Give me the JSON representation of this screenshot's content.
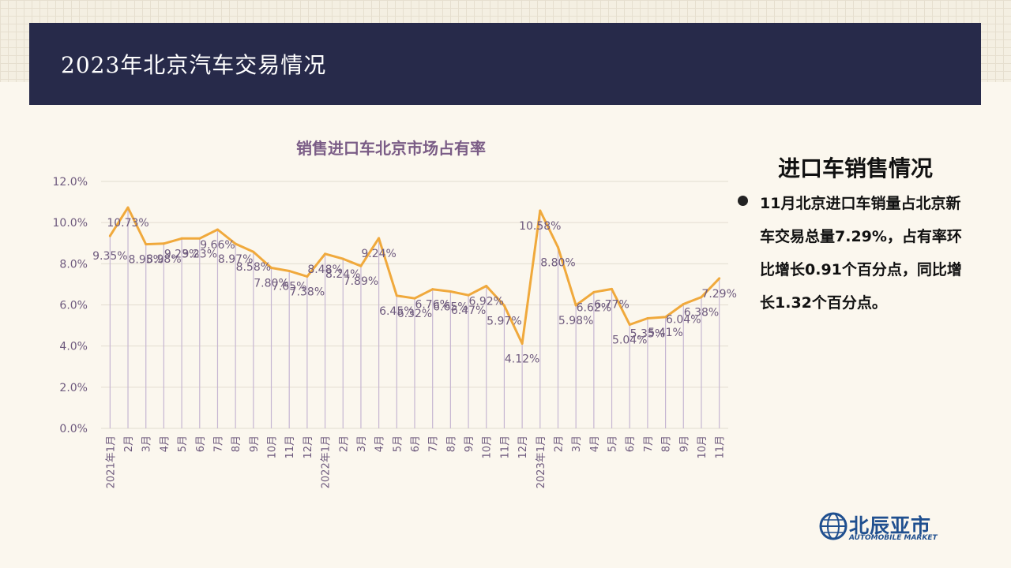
{
  "header": {
    "title": "2023年北京汽车交易情况"
  },
  "colors": {
    "header_bg": "#272a4a",
    "line": "#f0a93c",
    "stem": "#c6b6d2",
    "chart_title": "#7a5c86",
    "label": "#6e5a7e",
    "logo": "#1f4f8f"
  },
  "sidebar": {
    "title": "进口车销售情况",
    "bullet_text": "11月北京进口车销量占北京新车交易总量7.29%，占有率环比增长0.91个百分点，同比增长1.32个百分点。"
  },
  "logo": {
    "cn": "北辰亚市",
    "en": "AUTOMOBILE MARKET",
    "icon": "globe-icon"
  },
  "chart_data": {
    "type": "line",
    "title": "销售进口车北京市场占有率",
    "xlabel": "",
    "ylabel": "",
    "ylim": [
      0,
      12
    ],
    "yticks": [
      "0.0%",
      "2.0%",
      "4.0%",
      "6.0%",
      "8.0%",
      "10.0%",
      "12.0%"
    ],
    "grid": true,
    "legend": "none",
    "categories": [
      "2021年1月",
      "2月",
      "3月",
      "4月",
      "5月",
      "6月",
      "7月",
      "8月",
      "9月",
      "10月",
      "11月",
      "12月",
      "2022年1月",
      "2月",
      "3月",
      "4月",
      "5月",
      "6月",
      "7月",
      "8月",
      "9月",
      "10月",
      "11月",
      "12月",
      "2023年1月",
      "2月",
      "3月",
      "4月",
      "5月",
      "6月",
      "7月",
      "8月",
      "9月",
      "10月",
      "11月"
    ],
    "series": [
      {
        "values": [
          9.35,
          10.73,
          8.95,
          8.98,
          9.23,
          9.23,
          9.66,
          8.97,
          8.58,
          7.8,
          7.65,
          7.38,
          8.48,
          8.24,
          7.89,
          9.24,
          6.45,
          6.32,
          6.76,
          6.65,
          6.47,
          6.92,
          5.97,
          4.12,
          10.58,
          8.8,
          5.98,
          6.62,
          6.77,
          5.04,
          5.35,
          5.41,
          6.04,
          6.38,
          7.29
        ],
        "labels": [
          "9.35%",
          "10.73%",
          "8.95%",
          "8.98%",
          "9.23%",
          "9.23%",
          "9.66%",
          "8.97%",
          "8.58%",
          "7.80%",
          "7.65%",
          "7.38%",
          "8.48%",
          "8.24%",
          "7.89%",
          "9.24%",
          "6.45%",
          "6.32%",
          "6.76%",
          "6.65%",
          "6.47%",
          "6.92%",
          "5.97%",
          "4.12%",
          "10.58%",
          "8.80%",
          "5.98%",
          "6.62%",
          "6.77%",
          "5.04%",
          "5.35%",
          "5.41%",
          "6.04%",
          "6.38%",
          "7.29%"
        ]
      }
    ]
  }
}
